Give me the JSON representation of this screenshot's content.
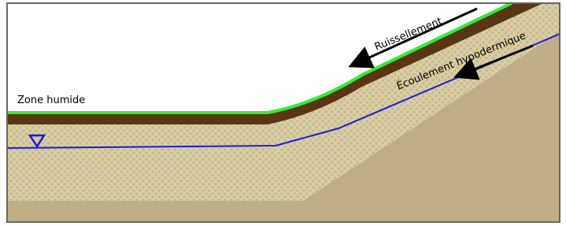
{
  "labels": {
    "runoff": "Ruissellement",
    "subsurface_flow": "Écoulement hypodermique",
    "wetland": "Zone humide"
  }
}
